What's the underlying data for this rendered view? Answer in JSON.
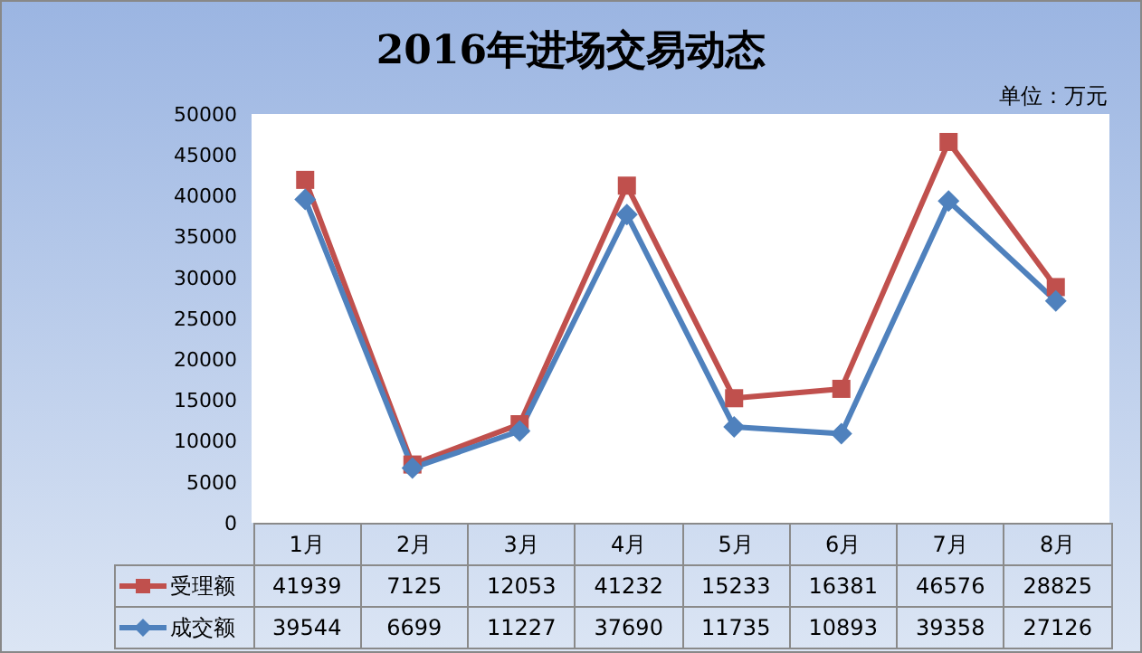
{
  "chart_data": {
    "type": "line",
    "title": "2016年进场交易动态",
    "annotations": [
      "单位：万元"
    ],
    "categories": [
      "1月",
      "2月",
      "3月",
      "4月",
      "5月",
      "6月",
      "7月",
      "8月"
    ],
    "series": [
      {
        "name": "受理额",
        "color": "#c0504d",
        "marker": "square",
        "values": [
          41939,
          7125,
          12053,
          41232,
          15233,
          16381,
          46576,
          28825
        ]
      },
      {
        "name": "成交额",
        "color": "#4f81bd",
        "marker": "diamond",
        "values": [
          39544,
          6699,
          11227,
          37690,
          11735,
          10893,
          39358,
          27126
        ]
      }
    ],
    "ylim": [
      0,
      50000
    ],
    "yticks": [
      0,
      5000,
      10000,
      15000,
      20000,
      25000,
      30000,
      35000,
      40000,
      45000,
      50000
    ],
    "grid": false,
    "legend": "bottom",
    "data_labels": true
  }
}
